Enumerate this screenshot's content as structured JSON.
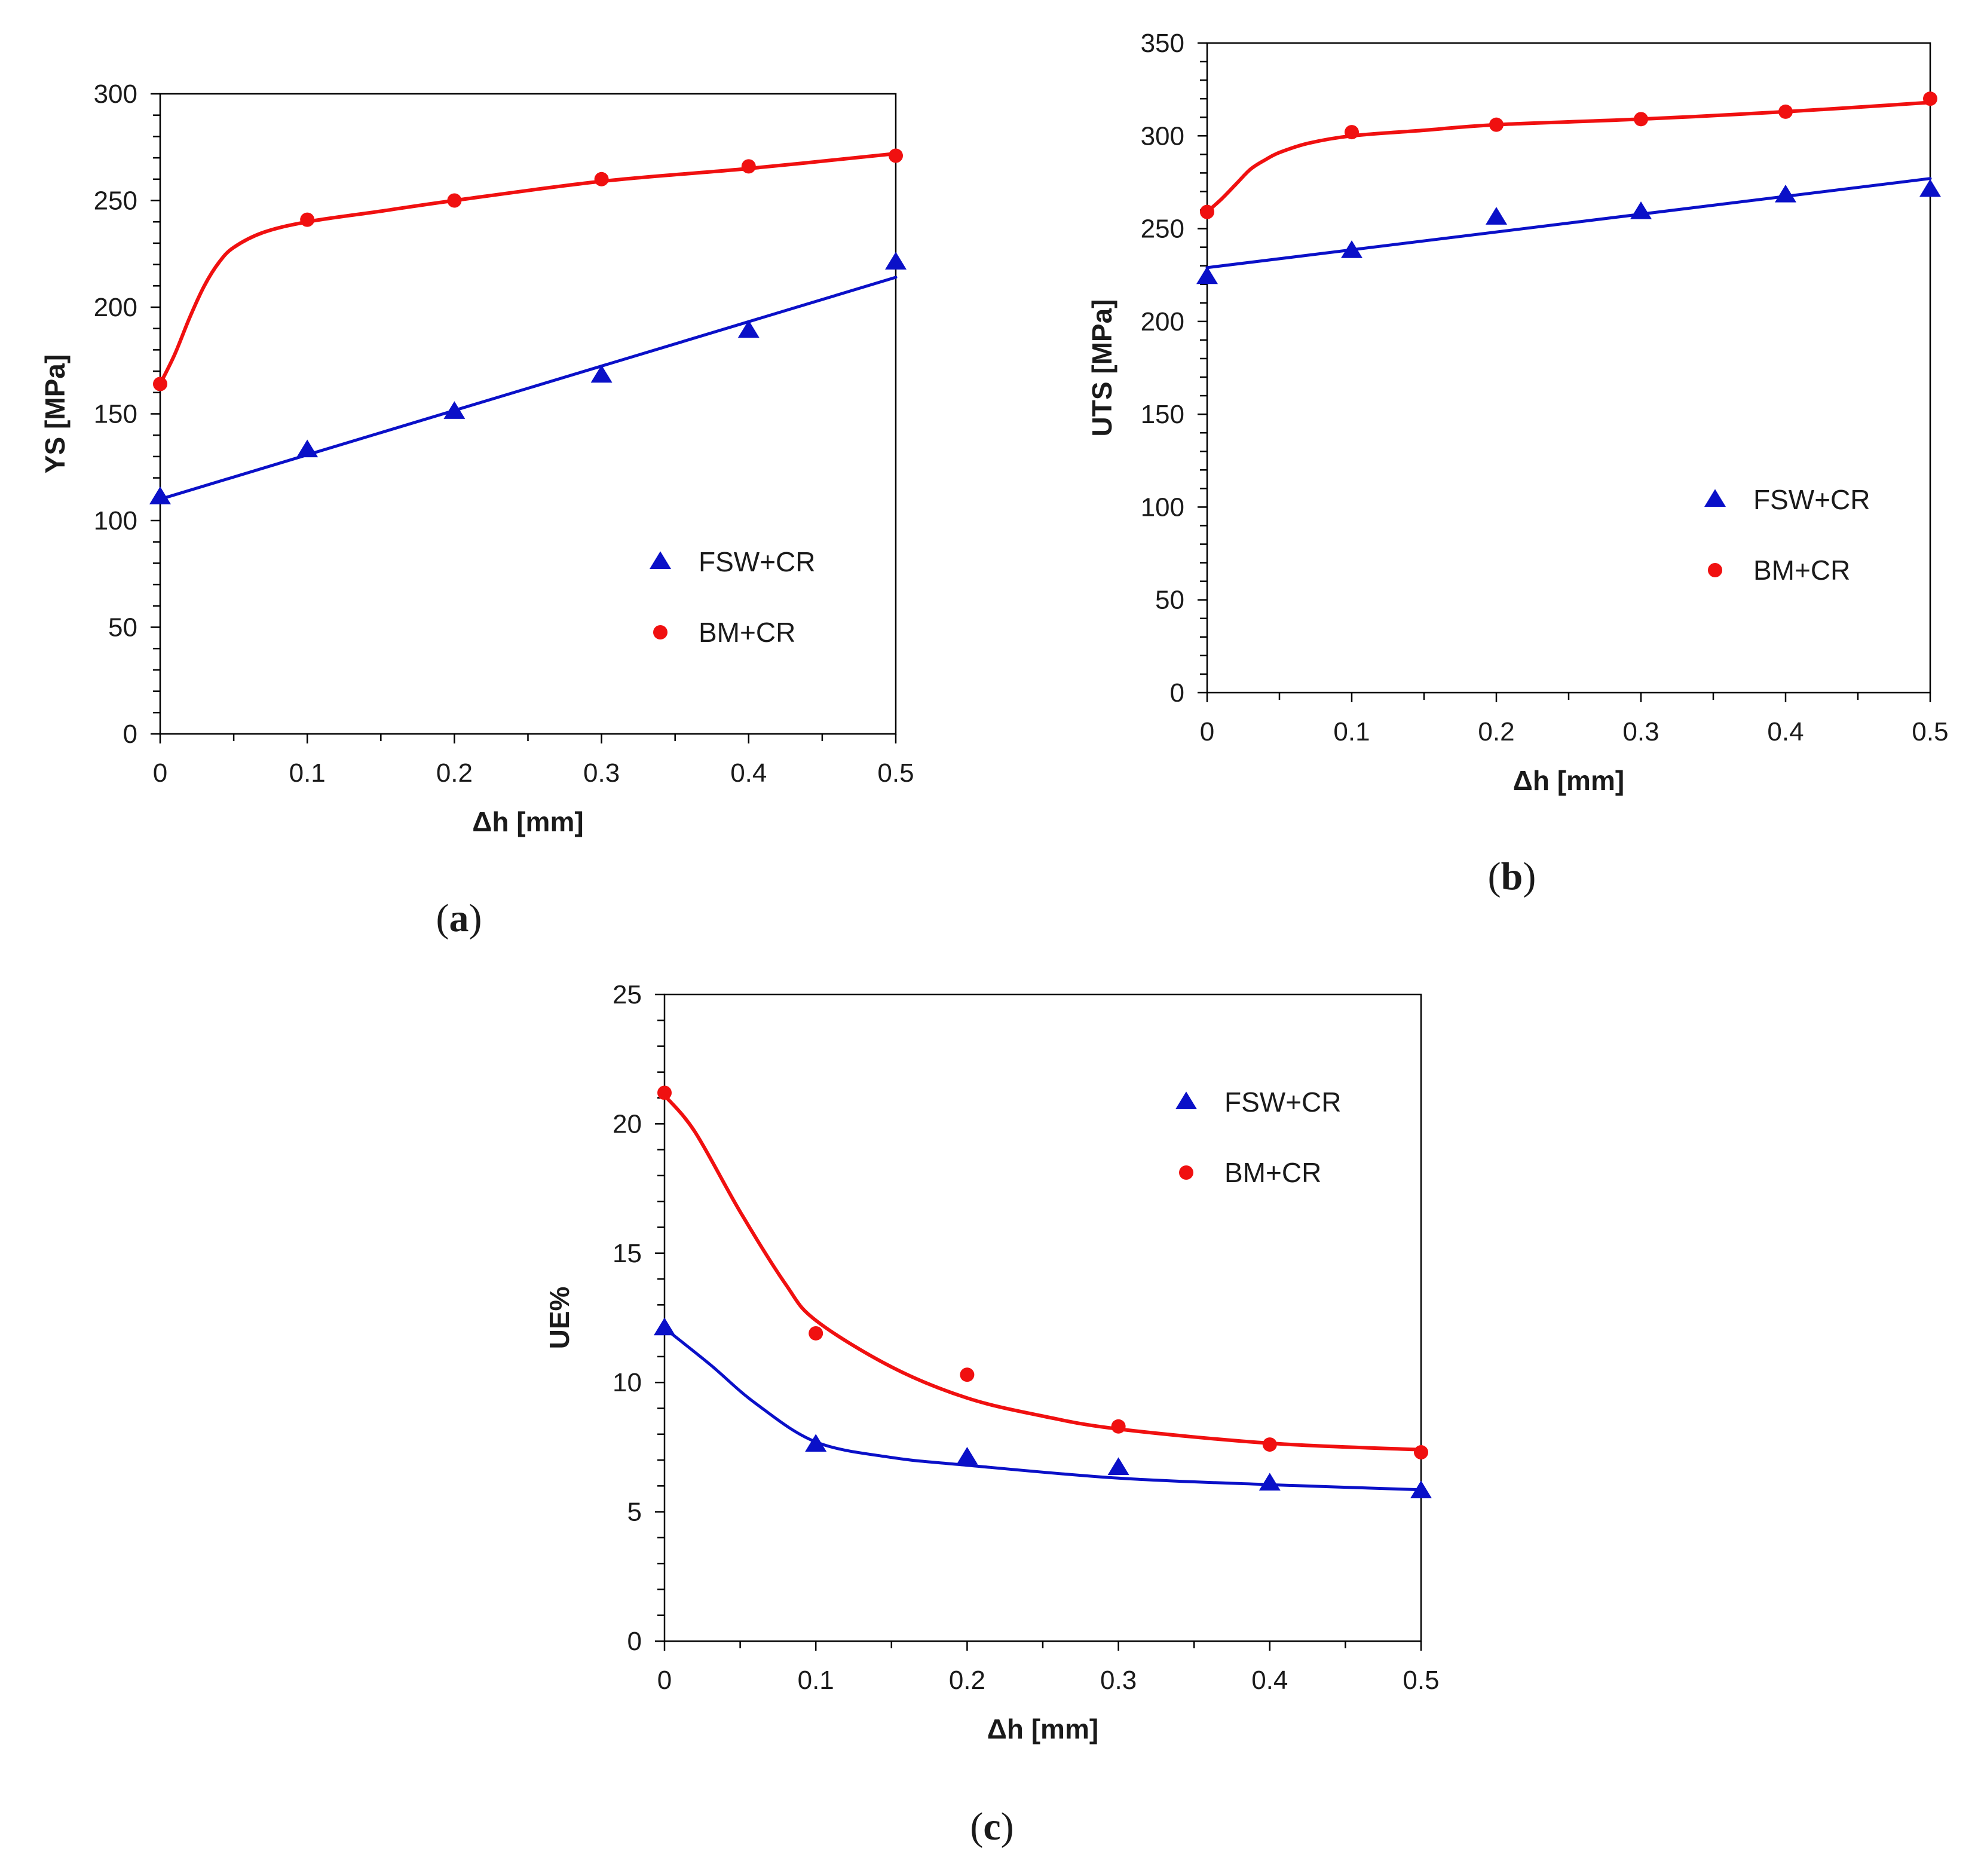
{
  "colors": {
    "fsw": "#0a10c8",
    "bm": "#f01010",
    "axis": "#000000",
    "text": "#1a1a1a"
  },
  "chart_data": [
    {
      "id": "a",
      "type": "scatter",
      "caption_letter": "a",
      "xlabel": "Δh [mm]",
      "ylabel": "YS [MPa]",
      "xlim": [
        0,
        0.5
      ],
      "ylim": [
        0,
        300
      ],
      "x_ticks": [
        0,
        0.1,
        0.2,
        0.3,
        0.4,
        0.5
      ],
      "x_tick_labels": [
        "0",
        "0.1",
        "0.2",
        "0.3",
        "0.4",
        "0.5"
      ],
      "y_ticks": [
        0,
        50,
        100,
        150,
        200,
        250,
        300
      ],
      "y_tick_labels": [
        "0",
        "50",
        "100",
        "150",
        "200",
        "250",
        "300"
      ],
      "legend_position": "lower-right",
      "series": [
        {
          "key": "fsw",
          "name": "FSW+CR",
          "marker": "triangle",
          "x": [
            0,
            0.1,
            0.2,
            0.3,
            0.4,
            0.5
          ],
          "y": [
            111,
            133,
            151,
            168,
            189,
            221
          ],
          "fit_x": [
            0,
            0.5
          ],
          "fit_y": [
            110,
            214
          ]
        },
        {
          "key": "bm",
          "name": "BM+CR",
          "marker": "circle",
          "x": [
            0,
            0.1,
            0.2,
            0.3,
            0.4,
            0.5
          ],
          "y": [
            164,
            241,
            250,
            260,
            266,
            271
          ],
          "fit_x": [
            0,
            0.01,
            0.02,
            0.03,
            0.04,
            0.05,
            0.07,
            0.1,
            0.15,
            0.2,
            0.3,
            0.4,
            0.5
          ],
          "fit_y": [
            164,
            178,
            195,
            210,
            221,
            228,
            235,
            240,
            245,
            250,
            259,
            265,
            272
          ]
        }
      ]
    },
    {
      "id": "b",
      "type": "scatter",
      "caption_letter": "b",
      "xlabel": "Δh [mm]",
      "ylabel": "UTS [MPa]",
      "xlim": [
        0,
        0.5
      ],
      "ylim": [
        0,
        350
      ],
      "x_ticks": [
        0,
        0.1,
        0.2,
        0.3,
        0.4,
        0.5
      ],
      "x_tick_labels": [
        "0",
        "0.1",
        "0.2",
        "0.3",
        "0.4",
        "0.5"
      ],
      "y_ticks": [
        0,
        50,
        100,
        150,
        200,
        250,
        300,
        350
      ],
      "y_tick_labels": [
        "0",
        "50",
        "100",
        "150",
        "200",
        "250",
        "300",
        "350"
      ],
      "legend_position": "lower-right",
      "series": [
        {
          "key": "fsw",
          "name": "FSW+CR",
          "marker": "triangle",
          "x": [
            0,
            0.1,
            0.2,
            0.3,
            0.4,
            0.5
          ],
          "y": [
            224,
            238,
            256,
            259,
            268,
            271
          ],
          "fit_x": [
            0,
            0.5
          ],
          "fit_y": [
            229,
            277
          ]
        },
        {
          "key": "bm",
          "name": "BM+CR",
          "marker": "circle",
          "x": [
            0,
            0.1,
            0.2,
            0.3,
            0.4,
            0.5
          ],
          "y": [
            259,
            302,
            306,
            309,
            313,
            320
          ],
          "fit_x": [
            0,
            0.01,
            0.02,
            0.03,
            0.04,
            0.05,
            0.07,
            0.1,
            0.15,
            0.2,
            0.3,
            0.4,
            0.5
          ],
          "fit_y": [
            259,
            266,
            274,
            282,
            287,
            291,
            296,
            300,
            303,
            306,
            309,
            313,
            318
          ]
        }
      ]
    },
    {
      "id": "c",
      "type": "scatter",
      "caption_letter": "c",
      "xlabel": "Δh [mm]",
      "ylabel": "UE%",
      "xlim": [
        0,
        0.5
      ],
      "ylim": [
        0,
        25
      ],
      "x_ticks": [
        0,
        0.1,
        0.2,
        0.3,
        0.4,
        0.5
      ],
      "x_tick_labels": [
        "0",
        "0.1",
        "0.2",
        "0.3",
        "0.4",
        "0.5"
      ],
      "y_ticks": [
        0,
        5,
        10,
        15,
        20,
        25
      ],
      "y_tick_labels": [
        "0",
        "5",
        "10",
        "15",
        "20",
        "25"
      ],
      "legend_position": "upper-right",
      "series": [
        {
          "key": "fsw",
          "name": "FSW+CR",
          "marker": "triangle",
          "x": [
            0,
            0.1,
            0.2,
            0.3,
            0.4,
            0.5
          ],
          "y": [
            12.1,
            7.6,
            7.1,
            6.7,
            6.1,
            5.8
          ],
          "fit_x": [
            0,
            0.03,
            0.06,
            0.1,
            0.15,
            0.2,
            0.3,
            0.4,
            0.5
          ],
          "fit_y": [
            12.1,
            10.7,
            9.2,
            7.7,
            7.1,
            6.8,
            6.3,
            6.05,
            5.85
          ]
        },
        {
          "key": "bm",
          "name": "BM+CR",
          "marker": "circle",
          "x": [
            0,
            0.1,
            0.2,
            0.3,
            0.4,
            0.5
          ],
          "y": [
            21.2,
            11.9,
            10.3,
            8.3,
            7.6,
            7.3
          ],
          "fit_x": [
            0,
            0.02,
            0.05,
            0.08,
            0.1,
            0.15,
            0.2,
            0.25,
            0.3,
            0.4,
            0.5
          ],
          "fit_y": [
            21.1,
            19.7,
            16.6,
            13.8,
            12.4,
            10.6,
            9.4,
            8.7,
            8.2,
            7.65,
            7.4
          ]
        }
      ]
    }
  ]
}
